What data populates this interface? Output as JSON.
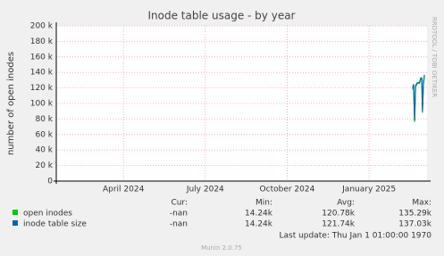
{
  "chart_data": {
    "type": "line",
    "title": "Inode table usage - by year",
    "y_label": "number of open inodes",
    "x": [
      2025.133,
      2025.136,
      2025.139,
      2025.142,
      2025.146,
      2025.15,
      2025.154,
      2025.158,
      2025.161,
      2025.163,
      2025.166,
      2025.169
    ],
    "series": [
      {
        "name": "open inodes",
        "color": "#00cc00",
        "values": [
          118000,
          123000,
          76000,
          121000,
          125000,
          126000,
          126000,
          132000,
          131000,
          88000,
          125000,
          135000
        ]
      },
      {
        "name": "inode table size",
        "color": "#0066b3",
        "values": [
          120000,
          125000,
          78000,
          123000,
          126000,
          127000,
          127000,
          133000,
          133000,
          90000,
          126000,
          137000
        ]
      }
    ],
    "xlim": [
      2024.045,
      2025.177
    ],
    "xticks": [
      {
        "value": 2024.25,
        "label": "April 2024"
      },
      {
        "value": 2024.5,
        "label": "July 2024"
      },
      {
        "value": 2024.75,
        "label": "October 2024"
      },
      {
        "value": 2025.0,
        "label": "January 2025"
      }
    ],
    "ylim": [
      0,
      200000
    ],
    "yticks": [
      0,
      {
        "value": 20000,
        "label": "20 k"
      },
      {
        "value": 40000,
        "label": "40 k"
      },
      {
        "value": 60000,
        "label": "60 k"
      },
      {
        "value": 80000,
        "label": "80 k"
      },
      {
        "value": 100000,
        "label": "100 k"
      },
      {
        "value": 120000,
        "label": "120 k"
      },
      {
        "value": 140000,
        "label": "140 k"
      },
      {
        "value": 160000,
        "label": "160 k"
      },
      {
        "value": 180000,
        "label": "180 k"
      },
      {
        "value": 200000,
        "label": "200 k"
      }
    ],
    "grid": true
  },
  "summary": {
    "headers": [
      "Cur:",
      "Min:",
      "Avg:",
      "Max:"
    ],
    "rows": [
      [
        "-nan",
        "14.24k",
        "120.78k",
        "135.29k"
      ],
      [
        "-nan",
        "14.24k",
        "121.74k",
        "137.03k"
      ]
    ]
  },
  "footer": "Last update: Thu Jan  1 01:00:00 1970",
  "credit": "Munin 2.0.75",
  "watermark": "RRDTOOL / TOBI OETIKER"
}
